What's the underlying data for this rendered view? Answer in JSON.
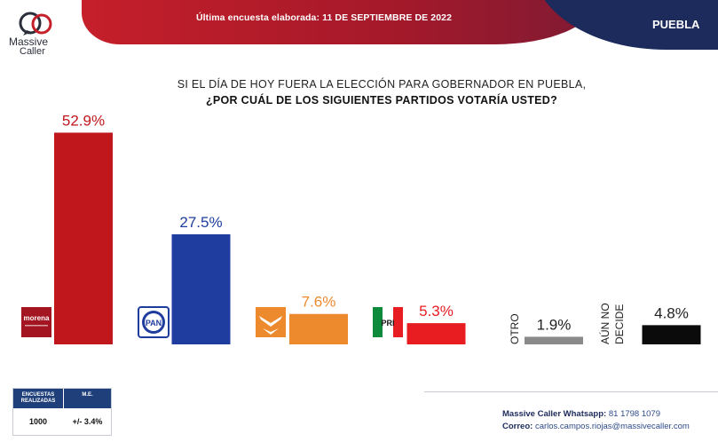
{
  "header": {
    "banner": "Última encuesta elaborada: 11 DE SEPTIEMBRE DE 2022",
    "region": "PUEBLA",
    "logo_line1": "Massive",
    "logo_line2": "Caller"
  },
  "question": {
    "line1": "SI EL DÍA DE HOY FUERA LA ELECCIÓN PARA GOBERNADOR EN PUEBLA,",
    "line2": "¿POR CUÁL DE LOS SIGUIENTES PARTIDOS VOTARÍA USTED?"
  },
  "chart_data": {
    "type": "bar",
    "title": "SI EL DÍA DE HOY FUERA LA ELECCIÓN PARA GOBERNADOR EN PUEBLA, ¿POR CUÁL DE LOS SIGUIENTES PARTIDOS VOTARÍA USTED?",
    "categories": [
      "morena",
      "PAN",
      "MC",
      "PRI",
      "OTRO",
      "AÚN NO DECIDE"
    ],
    "values": [
      52.9,
      27.5,
      7.6,
      5.3,
      1.9,
      4.8
    ],
    "labels": [
      "52.9%",
      "27.5%",
      "7.6%",
      "5.3%",
      "1.9%",
      "4.8%"
    ],
    "colors": [
      "#c0171d",
      "#1f3d9e",
      "#ee8a2e",
      "#e81d22",
      "#8a8a8a",
      "#0b0b0b"
    ],
    "label_colors": [
      "#c0171d",
      "#1f3d9e",
      "#ee8a2e",
      "#e81d22",
      "#222222",
      "#222222"
    ],
    "ylim": [
      0,
      55
    ],
    "grid": false
  },
  "logos": {
    "morena": "morena",
    "pan": "PAN",
    "pri": "PRI",
    "mc_icon": "movimiento-ciudadano-eagle-icon"
  },
  "text_categories": {
    "otro": "OTRO",
    "aun_no_decide_1": "AÚN NO",
    "aun_no_decide_2": "DECIDE"
  },
  "survey_table": {
    "col1_header_1": "ENCUESTAS",
    "col1_header_2": "REALIZADAS",
    "col2_header": "M.E.",
    "col1_value": "1000",
    "col2_value": "+/- 3.4%"
  },
  "contact": {
    "whatsapp_label": "Massive Caller Whatsapp:",
    "whatsapp_value": "81 1798 1079",
    "email_label": "Correo:",
    "email_value": "carlos.campos.riojas@massivecaller.com"
  }
}
